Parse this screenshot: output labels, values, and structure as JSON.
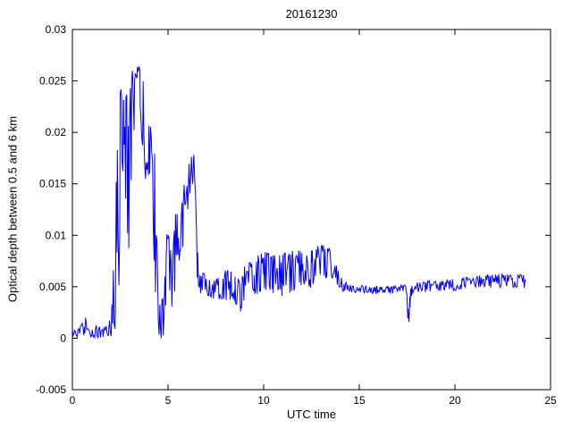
{
  "chart_data": {
    "type": "line",
    "title": "20161230",
    "xlabel": "UTC time",
    "ylabel": "Optical depth between 0.5 and 6 km",
    "xlim": [
      0,
      25
    ],
    "ylim": [
      -0.005,
      0.03
    ],
    "xticks": [
      0,
      5,
      10,
      15,
      20,
      25
    ],
    "xtick_labels": [
      "0",
      "5",
      "10",
      "15",
      "20",
      "25"
    ],
    "yticks": [
      -0.005,
      0,
      0.005,
      0.01,
      0.015,
      0.02,
      0.025,
      0.03
    ],
    "ytick_labels": [
      "-0.005",
      "0",
      "0.005",
      "0.01",
      "0.015",
      "0.02",
      "0.025",
      "0.03"
    ],
    "grid": false,
    "legend": null,
    "line_color": "#0000ff",
    "axes_color": "#000000",
    "background_color": "#ffffff",
    "noise_seed": 12345,
    "points_per_unit": 24,
    "keypoints_format": "[x_utc_hour, mean_optical_depth, noise_amplitude]",
    "keypoints": [
      [
        0.0,
        0.0005,
        0.0004
      ],
      [
        0.3,
        0.0005,
        0.0004
      ],
      [
        0.55,
        0.0008,
        0.0008
      ],
      [
        0.65,
        0.0015,
        0.0018
      ],
      [
        0.75,
        0.0006,
        0.0005
      ],
      [
        1.0,
        0.0005,
        0.0004
      ],
      [
        1.3,
        0.0007,
        0.0007
      ],
      [
        1.6,
        0.0005,
        0.0004
      ],
      [
        1.9,
        0.0008,
        0.0008
      ],
      [
        2.1,
        0.002,
        0.002
      ],
      [
        2.25,
        0.008,
        0.007
      ],
      [
        2.35,
        0.012,
        0.01
      ],
      [
        2.5,
        0.015,
        0.009
      ],
      [
        2.6,
        0.02,
        0.005
      ],
      [
        2.7,
        0.022,
        0.004
      ],
      [
        2.8,
        0.018,
        0.007
      ],
      [
        2.95,
        0.014,
        0.009
      ],
      [
        3.1,
        0.021,
        0.005
      ],
      [
        3.25,
        0.024,
        0.003
      ],
      [
        3.4,
        0.0245,
        0.002
      ],
      [
        3.55,
        0.023,
        0.0035
      ],
      [
        3.7,
        0.021,
        0.004
      ],
      [
        3.85,
        0.019,
        0.004
      ],
      [
        4.0,
        0.018,
        0.0035
      ],
      [
        4.15,
        0.017,
        0.003
      ],
      [
        4.3,
        0.012,
        0.006
      ],
      [
        4.45,
        0.004,
        0.004
      ],
      [
        4.6,
        0.002,
        0.002
      ],
      [
        4.75,
        0.003,
        0.003
      ],
      [
        4.9,
        0.006,
        0.004
      ],
      [
        5.05,
        0.007,
        0.004
      ],
      [
        5.2,
        0.004,
        0.003
      ],
      [
        5.35,
        0.008,
        0.004
      ],
      [
        5.5,
        0.01,
        0.003
      ],
      [
        5.65,
        0.011,
        0.003
      ],
      [
        5.8,
        0.012,
        0.003
      ],
      [
        5.95,
        0.013,
        0.0025
      ],
      [
        6.1,
        0.015,
        0.002
      ],
      [
        6.25,
        0.017,
        0.0018
      ],
      [
        6.35,
        0.016,
        0.002
      ],
      [
        6.45,
        0.011,
        0.003
      ],
      [
        6.55,
        0.007,
        0.002
      ],
      [
        6.7,
        0.0055,
        0.0012
      ],
      [
        7.0,
        0.005,
        0.001
      ],
      [
        7.5,
        0.005,
        0.0012
      ],
      [
        8.0,
        0.0052,
        0.0015
      ],
      [
        8.5,
        0.005,
        0.0015
      ],
      [
        8.8,
        0.004,
        0.002
      ],
      [
        9.0,
        0.0055,
        0.0018
      ],
      [
        9.5,
        0.006,
        0.002
      ],
      [
        10.0,
        0.0065,
        0.002
      ],
      [
        10.5,
        0.0063,
        0.002
      ],
      [
        11.0,
        0.006,
        0.0022
      ],
      [
        11.5,
        0.0065,
        0.002
      ],
      [
        12.0,
        0.007,
        0.0018
      ],
      [
        12.5,
        0.0068,
        0.002
      ],
      [
        13.0,
        0.0072,
        0.002
      ],
      [
        13.3,
        0.0075,
        0.0018
      ],
      [
        13.6,
        0.007,
        0.0015
      ],
      [
        13.9,
        0.006,
        0.001
      ],
      [
        14.2,
        0.005,
        0.0006
      ],
      [
        14.6,
        0.0048,
        0.0004
      ],
      [
        15.5,
        0.0047,
        0.0004
      ],
      [
        16.5,
        0.0047,
        0.0004
      ],
      [
        17.3,
        0.0048,
        0.0004
      ],
      [
        17.45,
        0.0048,
        0.0004
      ],
      [
        17.55,
        0.002,
        0.001
      ],
      [
        17.6,
        0.0012,
        0.0005
      ],
      [
        17.65,
        0.004,
        0.001
      ],
      [
        17.75,
        0.0048,
        0.0005
      ],
      [
        18.0,
        0.005,
        0.0005
      ],
      [
        19.0,
        0.005,
        0.0006
      ],
      [
        20.0,
        0.0052,
        0.0006
      ],
      [
        21.0,
        0.0055,
        0.0006
      ],
      [
        22.0,
        0.0056,
        0.0007
      ],
      [
        23.0,
        0.0056,
        0.0007
      ],
      [
        23.7,
        0.0055,
        0.0007
      ]
    ]
  }
}
